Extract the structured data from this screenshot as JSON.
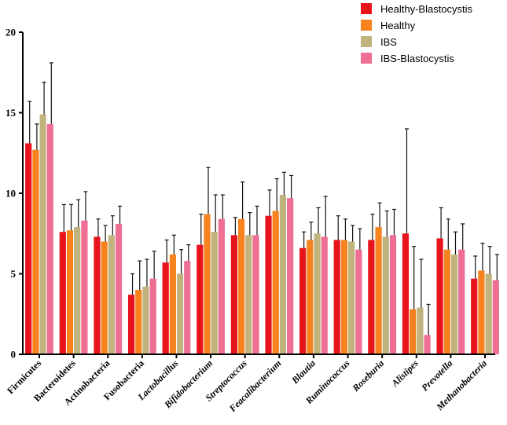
{
  "chart_data": {
    "type": "bar",
    "title": "",
    "xlabel": "",
    "ylabel": "",
    "ylim": [
      0,
      20
    ],
    "yticks": [
      0,
      5,
      10,
      15,
      20
    ],
    "legend_position": "top-right",
    "categories": [
      {
        "label": "Firmicutes",
        "italic": false
      },
      {
        "label": "Bacteroidetes",
        "italic": false
      },
      {
        "label": "Actinobacteria",
        "italic": false
      },
      {
        "label": "Fusobacteria",
        "italic": false
      },
      {
        "label": "Lactobacillus",
        "italic": true
      },
      {
        "label": "Bifidobacterium",
        "italic": true
      },
      {
        "label": "Streptococcus",
        "italic": true
      },
      {
        "label": "Feacalibacterium",
        "italic": true
      },
      {
        "label": "Blautia",
        "italic": true
      },
      {
        "label": "Ruminococcus",
        "italic": true
      },
      {
        "label": "Roseburia",
        "italic": true
      },
      {
        "label": "Alistipes",
        "italic": true
      },
      {
        "label": "Prevotella",
        "italic": true
      },
      {
        "label": "Methanobacteria",
        "italic": true
      }
    ],
    "series": [
      {
        "name": "Healthy-Blastocystis",
        "color": "#e8141c",
        "values": [
          13.1,
          7.6,
          7.3,
          3.7,
          5.7,
          6.8,
          7.4,
          8.6,
          6.6,
          7.1,
          7.1,
          7.5,
          7.2,
          4.7
        ],
        "errors": [
          2.6,
          1.7,
          1.1,
          1.3,
          1.4,
          1.9,
          1.1,
          1.6,
          1.0,
          1.5,
          1.6,
          6.5,
          1.9,
          1.4
        ]
      },
      {
        "name": "Healthy",
        "color": "#f7821e",
        "values": [
          12.7,
          7.7,
          7.0,
          4.0,
          6.2,
          8.7,
          8.4,
          8.9,
          7.1,
          7.1,
          7.9,
          2.8,
          6.5,
          5.2
        ],
        "errors": [
          1.6,
          1.6,
          1.0,
          1.8,
          1.2,
          2.9,
          2.3,
          2.0,
          1.1,
          1.3,
          1.5,
          3.9,
          1.9,
          1.7
        ]
      },
      {
        "name": "IBS",
        "color": "#c0b37e",
        "values": [
          14.9,
          7.9,
          7.4,
          4.2,
          5.0,
          7.6,
          7.4,
          9.9,
          7.5,
          7.0,
          7.3,
          2.9,
          6.2,
          5.0
        ],
        "errors": [
          2.0,
          1.7,
          1.2,
          1.7,
          1.5,
          2.3,
          1.4,
          1.4,
          1.6,
          1.0,
          1.6,
          3.0,
          1.4,
          1.7
        ]
      },
      {
        "name": "IBS-Blastocystis",
        "color": "#ee6f93",
        "values": [
          14.3,
          8.3,
          8.1,
          4.7,
          5.8,
          8.4,
          7.4,
          9.7,
          7.3,
          6.5,
          7.4,
          1.2,
          6.5,
          4.6
        ],
        "errors": [
          3.8,
          1.8,
          1.1,
          1.7,
          1.0,
          1.5,
          1.8,
          1.4,
          2.5,
          1.3,
          1.6,
          1.9,
          1.6,
          1.6
        ]
      }
    ]
  }
}
